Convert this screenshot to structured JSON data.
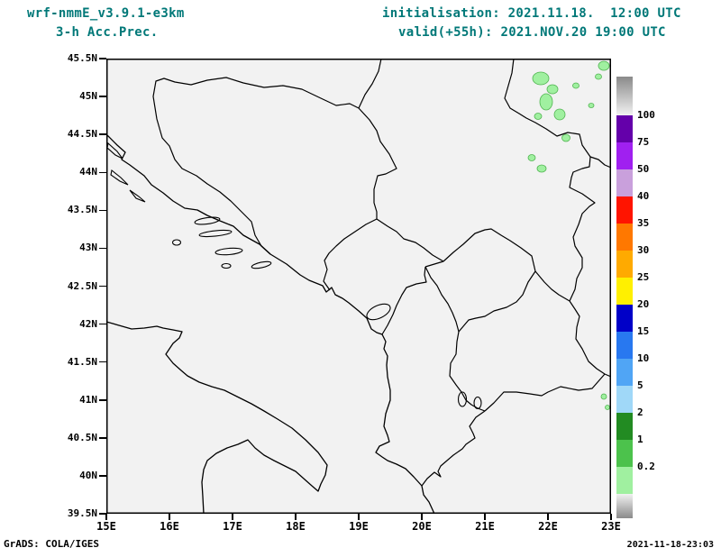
{
  "header": {
    "model_title": "wrf-nmmE_v3.9.1-e3km",
    "product_title": "3-h Acc.Prec.",
    "init_line": "initialisation: 2021.11.18.  12:00 UTC",
    "valid_line": "valid(+55h): 2021.NOV.20 19:00 UTC"
  },
  "axes": {
    "y_ticks": [
      "45.5N",
      "45N",
      "44.5N",
      "44N",
      "43.5N",
      "43N",
      "42.5N",
      "42N",
      "41.5N",
      "41N",
      "40.5N",
      "40N",
      "39.5N"
    ],
    "x_ticks": [
      "15E",
      "16E",
      "17E",
      "18E",
      "19E",
      "20E",
      "21E",
      "22E",
      "23E"
    ]
  },
  "legend": {
    "labels": [
      "100",
      "75",
      "50",
      "40",
      "35",
      "30",
      "25",
      "20",
      "15",
      "10",
      "5",
      "2",
      "1",
      "0.2"
    ],
    "segment_colors": [
      "#6400aa",
      "#a020f0",
      "#c9a0dc",
      "#ff1400",
      "#ff7800",
      "#ffaa00",
      "#fff000",
      "#0000c8",
      "#2878f0",
      "#50a5f5",
      "#a0d8f8",
      "#228b22",
      "#4cc24c",
      "#a0f0a0"
    ]
  },
  "map": {
    "precip_fill": "#a0f0a0",
    "precip_outline": "#50b450",
    "background": "#f2f2f2"
  },
  "footer": {
    "credit": "GrADS: COLA/IGES",
    "generated": "2021-11-18-23:03"
  }
}
